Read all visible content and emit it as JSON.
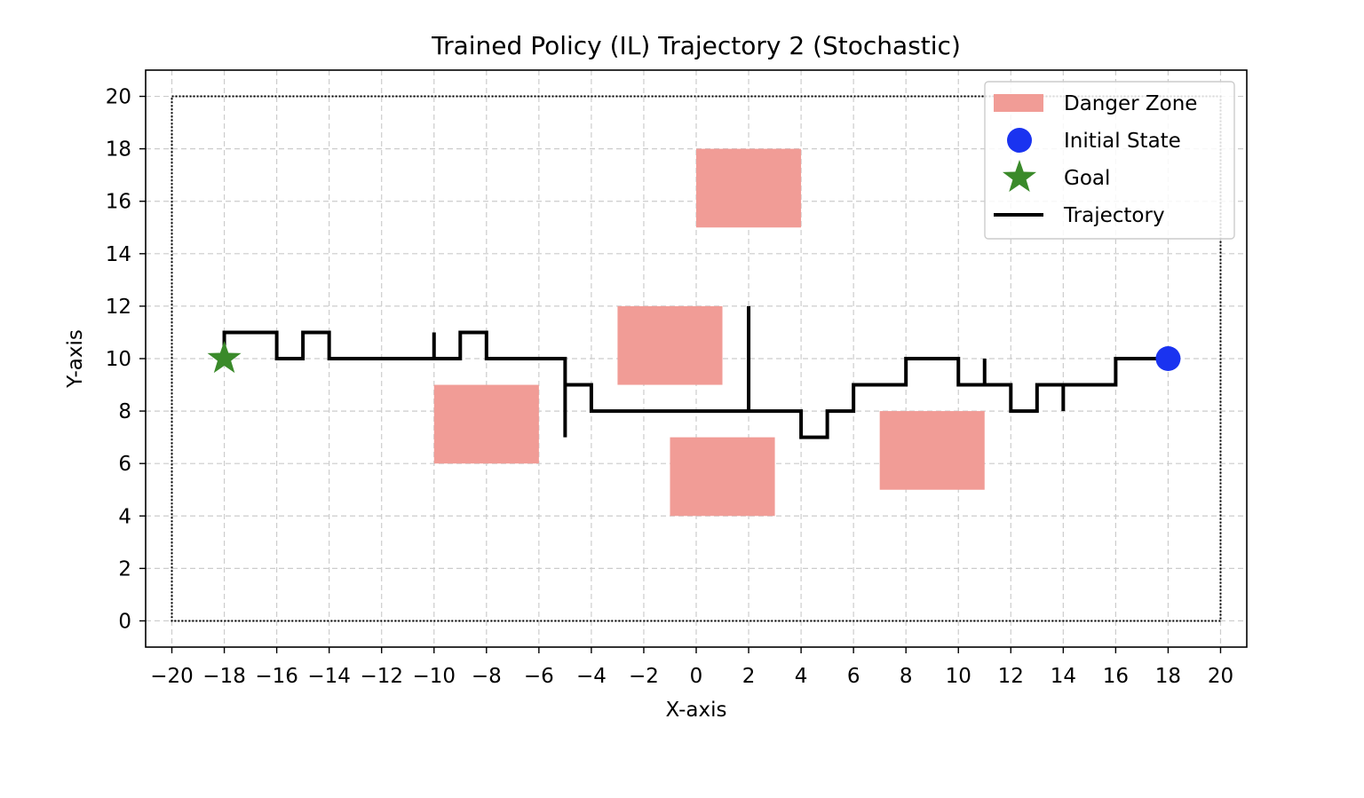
{
  "chart_data": {
    "type": "line",
    "title": "Trained Policy (IL) Trajectory 2 (Stochastic)",
    "xlabel": "X-axis",
    "ylabel": "Y-axis",
    "xlim": [
      -21,
      21
    ],
    "ylim": [
      -1,
      21
    ],
    "xticks": [
      -20,
      -18,
      -16,
      -14,
      -12,
      -10,
      -8,
      -6,
      -4,
      -2,
      0,
      2,
      4,
      6,
      8,
      10,
      12,
      14,
      16,
      18,
      20
    ],
    "yticks": [
      0,
      2,
      4,
      6,
      8,
      10,
      12,
      14,
      16,
      18,
      20
    ],
    "xtick_labels": [
      "−20",
      "−18",
      "−16",
      "−14",
      "−12",
      "−10",
      "−8",
      "−6",
      "−4",
      "−2",
      "0",
      "2",
      "4",
      "6",
      "8",
      "10",
      "12",
      "14",
      "16",
      "18",
      "20"
    ],
    "ytick_labels": [
      "0",
      "2",
      "4",
      "6",
      "8",
      "10",
      "12",
      "14",
      "16",
      "18",
      "20"
    ],
    "grid": true,
    "legend_placement": "upper right",
    "boundary": {
      "x": [
        -20,
        20
      ],
      "y": [
        0,
        20
      ],
      "color": "#000000"
    },
    "danger_zones": [
      {
        "x": [
          -10,
          -6
        ],
        "y": [
          6,
          9
        ]
      },
      {
        "x": [
          -3,
          1
        ],
        "y": [
          9,
          12
        ]
      },
      {
        "x": [
          0,
          4
        ],
        "y": [
          15,
          18
        ]
      },
      {
        "x": [
          -1,
          3
        ],
        "y": [
          4,
          7
        ]
      },
      {
        "x": [
          7,
          11
        ],
        "y": [
          5,
          8
        ]
      }
    ],
    "danger_color": "#f19c96",
    "initial_state": {
      "x": 18,
      "y": 10,
      "color": "#1a33f0"
    },
    "goal": {
      "x": -18,
      "y": 10,
      "color": "#3a8a2a"
    },
    "trajectory": {
      "color": "#000000",
      "points": [
        [
          18,
          10
        ],
        [
          16,
          10
        ],
        [
          16,
          9
        ],
        [
          14,
          9
        ],
        [
          14,
          8
        ],
        [
          14,
          9
        ],
        [
          13,
          9
        ],
        [
          13,
          8
        ],
        [
          12,
          8
        ],
        [
          12,
          9
        ],
        [
          11,
          9
        ],
        [
          11,
          10
        ],
        [
          11,
          9
        ],
        [
          10,
          9
        ],
        [
          10,
          10
        ],
        [
          8,
          10
        ],
        [
          8,
          9
        ],
        [
          6,
          9
        ],
        [
          6,
          8
        ],
        [
          5,
          8
        ],
        [
          5,
          7
        ],
        [
          4,
          7
        ],
        [
          4,
          8
        ],
        [
          2,
          8
        ],
        [
          2,
          12
        ],
        [
          2,
          8
        ],
        [
          -4,
          8
        ],
        [
          -4,
          9
        ],
        [
          -5,
          9
        ],
        [
          -5,
          7
        ],
        [
          -5,
          10
        ],
        [
          -8,
          10
        ],
        [
          -8,
          11
        ],
        [
          -9,
          11
        ],
        [
          -9,
          10
        ],
        [
          -10,
          10
        ],
        [
          -10,
          11
        ],
        [
          -10,
          10
        ],
        [
          -14,
          10
        ],
        [
          -14,
          11
        ],
        [
          -15,
          11
        ],
        [
          -15,
          10
        ],
        [
          -16,
          10
        ],
        [
          -16,
          11
        ],
        [
          -18,
          11
        ],
        [
          -18,
          10
        ]
      ]
    },
    "legend": [
      {
        "label": "Danger Zone",
        "kind": "patch",
        "color": "#f19c96"
      },
      {
        "label": "Initial State",
        "kind": "circle",
        "color": "#1a33f0"
      },
      {
        "label": "Goal",
        "kind": "star",
        "color": "#3a8a2a"
      },
      {
        "label": "Trajectory",
        "kind": "line",
        "color": "#000000"
      }
    ]
  }
}
